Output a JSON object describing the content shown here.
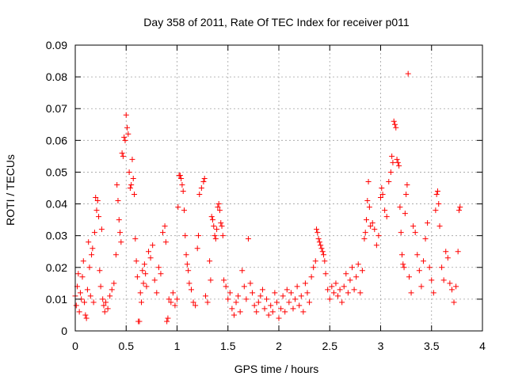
{
  "chart_data": {
    "type": "scatter",
    "title": "Day 358 of 2011, Rate Of TEC Index for receiver p011",
    "xlabel": "GPS time / hours",
    "ylabel": "ROTI / TECUs",
    "xlim": [
      0,
      4
    ],
    "ylim": [
      0,
      0.09
    ],
    "x_ticks": [
      "0",
      "0.5",
      "1",
      "1.5",
      "2",
      "2.5",
      "3",
      "3.5",
      "4"
    ],
    "y_ticks": [
      "0",
      "0.01",
      "0.02",
      "0.03",
      "0.04",
      "0.05",
      "0.06",
      "0.07",
      "0.08",
      "0.09"
    ],
    "grid": true,
    "marker": "+",
    "color": "#ff0000",
    "series": [
      {
        "points": [
          [
            0.0,
            0.011
          ],
          [
            0.01,
            0.008
          ],
          [
            0.02,
            0.014
          ],
          [
            0.03,
            0.018
          ],
          [
            0.04,
            0.006
          ],
          [
            0.05,
            0.012
          ],
          [
            0.06,
            0.01
          ],
          [
            0.07,
            0.017
          ],
          [
            0.08,
            0.022
          ],
          [
            0.09,
            0.009
          ],
          [
            0.1,
            0.005
          ],
          [
            0.11,
            0.004
          ],
          [
            0.12,
            0.013
          ],
          [
            0.13,
            0.028
          ],
          [
            0.14,
            0.02
          ],
          [
            0.15,
            0.011
          ],
          [
            0.16,
            0.024
          ],
          [
            0.17,
            0.026
          ],
          [
            0.18,
            0.009
          ],
          [
            0.19,
            0.031
          ],
          [
            0.2,
            0.042
          ],
          [
            0.21,
            0.038
          ],
          [
            0.22,
            0.041
          ],
          [
            0.23,
            0.036
          ],
          [
            0.24,
            0.019
          ],
          [
            0.25,
            0.014
          ],
          [
            0.26,
            0.032
          ],
          [
            0.27,
            0.01
          ],
          [
            0.28,
            0.008
          ],
          [
            0.29,
            0.006
          ],
          [
            0.3,
            0.009
          ],
          [
            0.32,
            0.007
          ],
          [
            0.34,
            0.011
          ],
          [
            0.36,
            0.013
          ],
          [
            0.38,
            0.015
          ],
          [
            0.4,
            0.024
          ],
          [
            0.41,
            0.046
          ],
          [
            0.42,
            0.041
          ],
          [
            0.43,
            0.035
          ],
          [
            0.44,
            0.031
          ],
          [
            0.45,
            0.028
          ],
          [
            0.46,
            0.056
          ],
          [
            0.47,
            0.055
          ],
          [
            0.48,
            0.061
          ],
          [
            0.49,
            0.06
          ],
          [
            0.5,
            0.068
          ],
          [
            0.51,
            0.064
          ],
          [
            0.52,
            0.062
          ],
          [
            0.53,
            0.05
          ],
          [
            0.54,
            0.045
          ],
          [
            0.55,
            0.046
          ],
          [
            0.56,
            0.054
          ],
          [
            0.57,
            0.048
          ],
          [
            0.58,
            0.043
          ],
          [
            0.59,
            0.029
          ],
          [
            0.6,
            0.022
          ],
          [
            0.61,
            0.017
          ],
          [
            0.62,
            0.003
          ],
          [
            0.63,
            0.003
          ],
          [
            0.64,
            0.012
          ],
          [
            0.65,
            0.009
          ],
          [
            0.66,
            0.019
          ],
          [
            0.67,
            0.015
          ],
          [
            0.68,
            0.021
          ],
          [
            0.69,
            0.018
          ],
          [
            0.7,
            0.014
          ],
          [
            0.72,
            0.025
          ],
          [
            0.74,
            0.023
          ],
          [
            0.76,
            0.027
          ],
          [
            0.78,
            0.016
          ],
          [
            0.8,
            0.012
          ],
          [
            0.82,
            0.02
          ],
          [
            0.84,
            0.018
          ],
          [
            0.86,
            0.031
          ],
          [
            0.88,
            0.033
          ],
          [
            0.89,
            0.028
          ],
          [
            0.9,
            0.003
          ],
          [
            0.91,
            0.004
          ],
          [
            0.92,
            0.01
          ],
          [
            0.94,
            0.009
          ],
          [
            0.96,
            0.012
          ],
          [
            0.98,
            0.008
          ],
          [
            1.0,
            0.01
          ],
          [
            1.01,
            0.039
          ],
          [
            1.02,
            0.049
          ],
          [
            1.03,
            0.049
          ],
          [
            1.04,
            0.048
          ],
          [
            1.05,
            0.046
          ],
          [
            1.06,
            0.044
          ],
          [
            1.07,
            0.038
          ],
          [
            1.08,
            0.03
          ],
          [
            1.09,
            0.024
          ],
          [
            1.1,
            0.021
          ],
          [
            1.11,
            0.019
          ],
          [
            1.12,
            0.015
          ],
          [
            1.14,
            0.013
          ],
          [
            1.16,
            0.009
          ],
          [
            1.18,
            0.008
          ],
          [
            1.2,
            0.026
          ],
          [
            1.21,
            0.03
          ],
          [
            1.22,
            0.043
          ],
          [
            1.24,
            0.045
          ],
          [
            1.26,
            0.047
          ],
          [
            1.27,
            0.048
          ],
          [
            1.28,
            0.011
          ],
          [
            1.3,
            0.009
          ],
          [
            1.32,
            0.022
          ],
          [
            1.33,
            0.016
          ],
          [
            1.34,
            0.036
          ],
          [
            1.35,
            0.035
          ],
          [
            1.36,
            0.033
          ],
          [
            1.37,
            0.03
          ],
          [
            1.38,
            0.029
          ],
          [
            1.39,
            0.032
          ],
          [
            1.4,
            0.039
          ],
          [
            1.41,
            0.04
          ],
          [
            1.42,
            0.038
          ],
          [
            1.43,
            0.034
          ],
          [
            1.44,
            0.033
          ],
          [
            1.45,
            0.03
          ],
          [
            1.46,
            0.016
          ],
          [
            1.48,
            0.014
          ],
          [
            1.5,
            0.01
          ],
          [
            1.52,
            0.012
          ],
          [
            1.54,
            0.007
          ],
          [
            1.56,
            0.005
          ],
          [
            1.58,
            0.009
          ],
          [
            1.6,
            0.011
          ],
          [
            1.62,
            0.006
          ],
          [
            1.64,
            0.019
          ],
          [
            1.66,
            0.014
          ],
          [
            1.68,
            0.01
          ],
          [
            1.7,
            0.029
          ],
          [
            1.72,
            0.015
          ],
          [
            1.74,
            0.012
          ],
          [
            1.76,
            0.008
          ],
          [
            1.78,
            0.006
          ],
          [
            1.8,
            0.009
          ],
          [
            1.82,
            0.011
          ],
          [
            1.84,
            0.013
          ],
          [
            1.86,
            0.007
          ],
          [
            1.88,
            0.01
          ],
          [
            1.9,
            0.005
          ],
          [
            1.92,
            0.008
          ],
          [
            1.94,
            0.006
          ],
          [
            1.96,
            0.012
          ],
          [
            1.98,
            0.009
          ],
          [
            2.0,
            0.004
          ],
          [
            2.02,
            0.007
          ],
          [
            2.04,
            0.011
          ],
          [
            2.06,
            0.006
          ],
          [
            2.08,
            0.013
          ],
          [
            2.1,
            0.009
          ],
          [
            2.12,
            0.012
          ],
          [
            2.14,
            0.007
          ],
          [
            2.16,
            0.01
          ],
          [
            2.18,
            0.014
          ],
          [
            2.2,
            0.008
          ],
          [
            2.22,
            0.011
          ],
          [
            2.24,
            0.006
          ],
          [
            2.26,
            0.015
          ],
          [
            2.28,
            0.012
          ],
          [
            2.3,
            0.009
          ],
          [
            2.32,
            0.017
          ],
          [
            2.34,
            0.02
          ],
          [
            2.36,
            0.022
          ],
          [
            2.37,
            0.032
          ],
          [
            2.38,
            0.031
          ],
          [
            2.39,
            0.029
          ],
          [
            2.4,
            0.028
          ],
          [
            2.41,
            0.027
          ],
          [
            2.42,
            0.026
          ],
          [
            2.43,
            0.025
          ],
          [
            2.44,
            0.024
          ],
          [
            2.45,
            0.022
          ],
          [
            2.46,
            0.018
          ],
          [
            2.48,
            0.013
          ],
          [
            2.5,
            0.01
          ],
          [
            2.52,
            0.014
          ],
          [
            2.54,
            0.012
          ],
          [
            2.56,
            0.015
          ],
          [
            2.58,
            0.011
          ],
          [
            2.6,
            0.013
          ],
          [
            2.62,
            0.009
          ],
          [
            2.64,
            0.014
          ],
          [
            2.66,
            0.018
          ],
          [
            2.68,
            0.012
          ],
          [
            2.7,
            0.016
          ],
          [
            2.72,
            0.02
          ],
          [
            2.74,
            0.013
          ],
          [
            2.76,
            0.017
          ],
          [
            2.78,
            0.021
          ],
          [
            2.8,
            0.012
          ],
          [
            2.82,
            0.019
          ],
          [
            2.84,
            0.029
          ],
          [
            2.85,
            0.031
          ],
          [
            2.86,
            0.035
          ],
          [
            2.87,
            0.041
          ],
          [
            2.88,
            0.047
          ],
          [
            2.89,
            0.039
          ],
          [
            2.9,
            0.033
          ],
          [
            2.92,
            0.034
          ],
          [
            2.94,
            0.032
          ],
          [
            2.96,
            0.027
          ],
          [
            2.98,
            0.03
          ],
          [
            3.0,
            0.042
          ],
          [
            3.01,
            0.045
          ],
          [
            3.02,
            0.043
          ],
          [
            3.04,
            0.038
          ],
          [
            3.06,
            0.036
          ],
          [
            3.08,
            0.047
          ],
          [
            3.1,
            0.05
          ],
          [
            3.11,
            0.055
          ],
          [
            3.12,
            0.053
          ],
          [
            3.13,
            0.066
          ],
          [
            3.14,
            0.065
          ],
          [
            3.15,
            0.064
          ],
          [
            3.16,
            0.054
          ],
          [
            3.17,
            0.053
          ],
          [
            3.18,
            0.052
          ],
          [
            3.19,
            0.039
          ],
          [
            3.2,
            0.031
          ],
          [
            3.21,
            0.024
          ],
          [
            3.22,
            0.021
          ],
          [
            3.23,
            0.02
          ],
          [
            3.24,
            0.037
          ],
          [
            3.25,
            0.043
          ],
          [
            3.26,
            0.046
          ],
          [
            3.27,
            0.081
          ],
          [
            3.28,
            0.017
          ],
          [
            3.3,
            0.012
          ],
          [
            3.32,
            0.033
          ],
          [
            3.34,
            0.031
          ],
          [
            3.36,
            0.024
          ],
          [
            3.38,
            0.019
          ],
          [
            3.4,
            0.014
          ],
          [
            3.42,
            0.022
          ],
          [
            3.44,
            0.029
          ],
          [
            3.46,
            0.034
          ],
          [
            3.48,
            0.02
          ],
          [
            3.5,
            0.016
          ],
          [
            3.52,
            0.012
          ],
          [
            3.54,
            0.038
          ],
          [
            3.55,
            0.043
          ],
          [
            3.56,
            0.044
          ],
          [
            3.57,
            0.04
          ],
          [
            3.58,
            0.033
          ],
          [
            3.6,
            0.02
          ],
          [
            3.62,
            0.016
          ],
          [
            3.64,
            0.025
          ],
          [
            3.66,
            0.023
          ],
          [
            3.68,
            0.015
          ],
          [
            3.7,
            0.013
          ],
          [
            3.72,
            0.009
          ],
          [
            3.74,
            0.014
          ],
          [
            3.76,
            0.025
          ],
          [
            3.77,
            0.038
          ],
          [
            3.78,
            0.039
          ]
        ]
      }
    ]
  }
}
